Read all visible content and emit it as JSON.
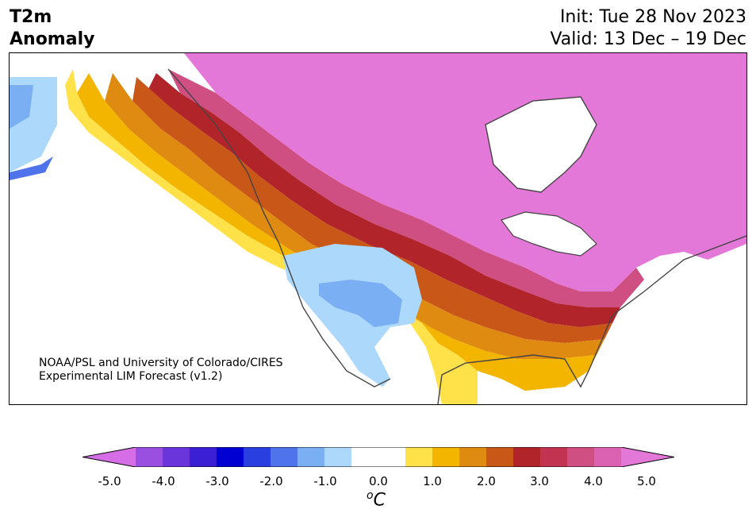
{
  "title": {
    "left_line1": "T2m",
    "left_line2": "Anomaly",
    "init": "Init: Tue 28 Nov 2023",
    "valid": "Valid: 13 Dec – 19 Dec"
  },
  "credit": {
    "line1": "NOAA/PSL and University of Colorado/CIRES",
    "line2": "Experimental LIM Forecast (v1.2)"
  },
  "colorbar": {
    "ticks": [
      "-5.0",
      "-4.0",
      "-3.0",
      "-2.0",
      "-1.0",
      "0.0",
      "1.0",
      "2.0",
      "3.0",
      "4.0",
      "5.0"
    ],
    "unit_sup": "o",
    "unit_main": "C",
    "colors": [
      "#d56ee6",
      "#9a4fe0",
      "#6a35da",
      "#3a1fd4",
      "#0000d2",
      "#2a3fe0",
      "#4f73ea",
      "#7aaff4",
      "#acd8fb",
      "#ffffff",
      "#ffffff",
      "#ffe14a",
      "#f3b500",
      "#df8a10",
      "#c95718",
      "#b1242a",
      "#c23351",
      "#cf4f82",
      "#db62b3",
      "#e478d8"
    ]
  },
  "map": {
    "region": "North America",
    "variable": "2 m temperature anomaly",
    "palette": {
      "strong_warm": "#e478d8",
      "warm4": "#cf4f82",
      "warm3": "#b1242a",
      "warm2": "#c95718",
      "warm_mid": "#df8a10",
      "warm1": "#f3b500",
      "weak_warm": "#ffe14a",
      "weak_cold": "#acd8fb",
      "cold1": "#7aaff4",
      "cold2": "#4f73ea"
    }
  }
}
